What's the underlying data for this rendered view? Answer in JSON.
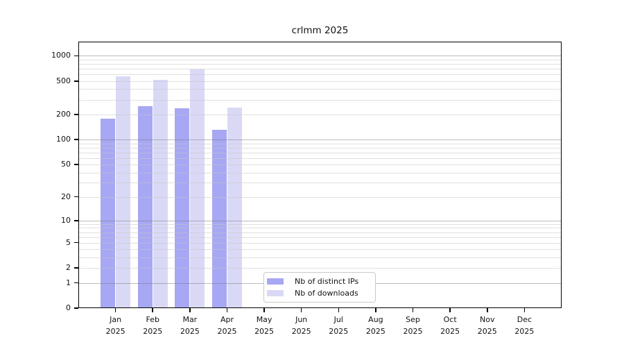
{
  "title": "crlmm 2025",
  "chart_data": {
    "type": "bar",
    "title": "crlmm 2025",
    "categories": [
      "Jan",
      "Feb",
      "Mar",
      "Apr",
      "May",
      "Jun",
      "Jul",
      "Aug",
      "Sep",
      "Oct",
      "Nov",
      "Dec"
    ],
    "year_label": "2025",
    "series": [
      {
        "name": "Nb of distinct IPs",
        "color": "#a7a7f3",
        "values": [
          178,
          251,
          239,
          130,
          0,
          0,
          0,
          0,
          0,
          0,
          0,
          0
        ]
      },
      {
        "name": "Nb of downloads",
        "color": "#d9d9f6",
        "values": [
          573,
          517,
          685,
          241,
          0,
          0,
          0,
          0,
          0,
          0,
          0,
          0
        ]
      }
    ],
    "y_ticks": [
      0,
      1,
      2,
      5,
      10,
      20,
      50,
      100,
      200,
      500,
      1000
    ],
    "y_scale": "log10(value+1)",
    "ylim": [
      0,
      1500
    ],
    "grid": "horizontal-log",
    "legend_position": "bottom-center-inside"
  },
  "legend": {
    "items": [
      {
        "label": "Nb of distinct IPs"
      },
      {
        "label": "Nb of downloads"
      }
    ]
  },
  "colors": {
    "background": "#ffffff",
    "frame": "#000000",
    "text": "#111111",
    "grid_minor": "#e6e6e6",
    "grid_major": "#bcbcbc",
    "legend_border": "#c9c9c9",
    "series_distinct_ips": "#a7a7f3",
    "series_downloads": "#d9d9f6"
  }
}
